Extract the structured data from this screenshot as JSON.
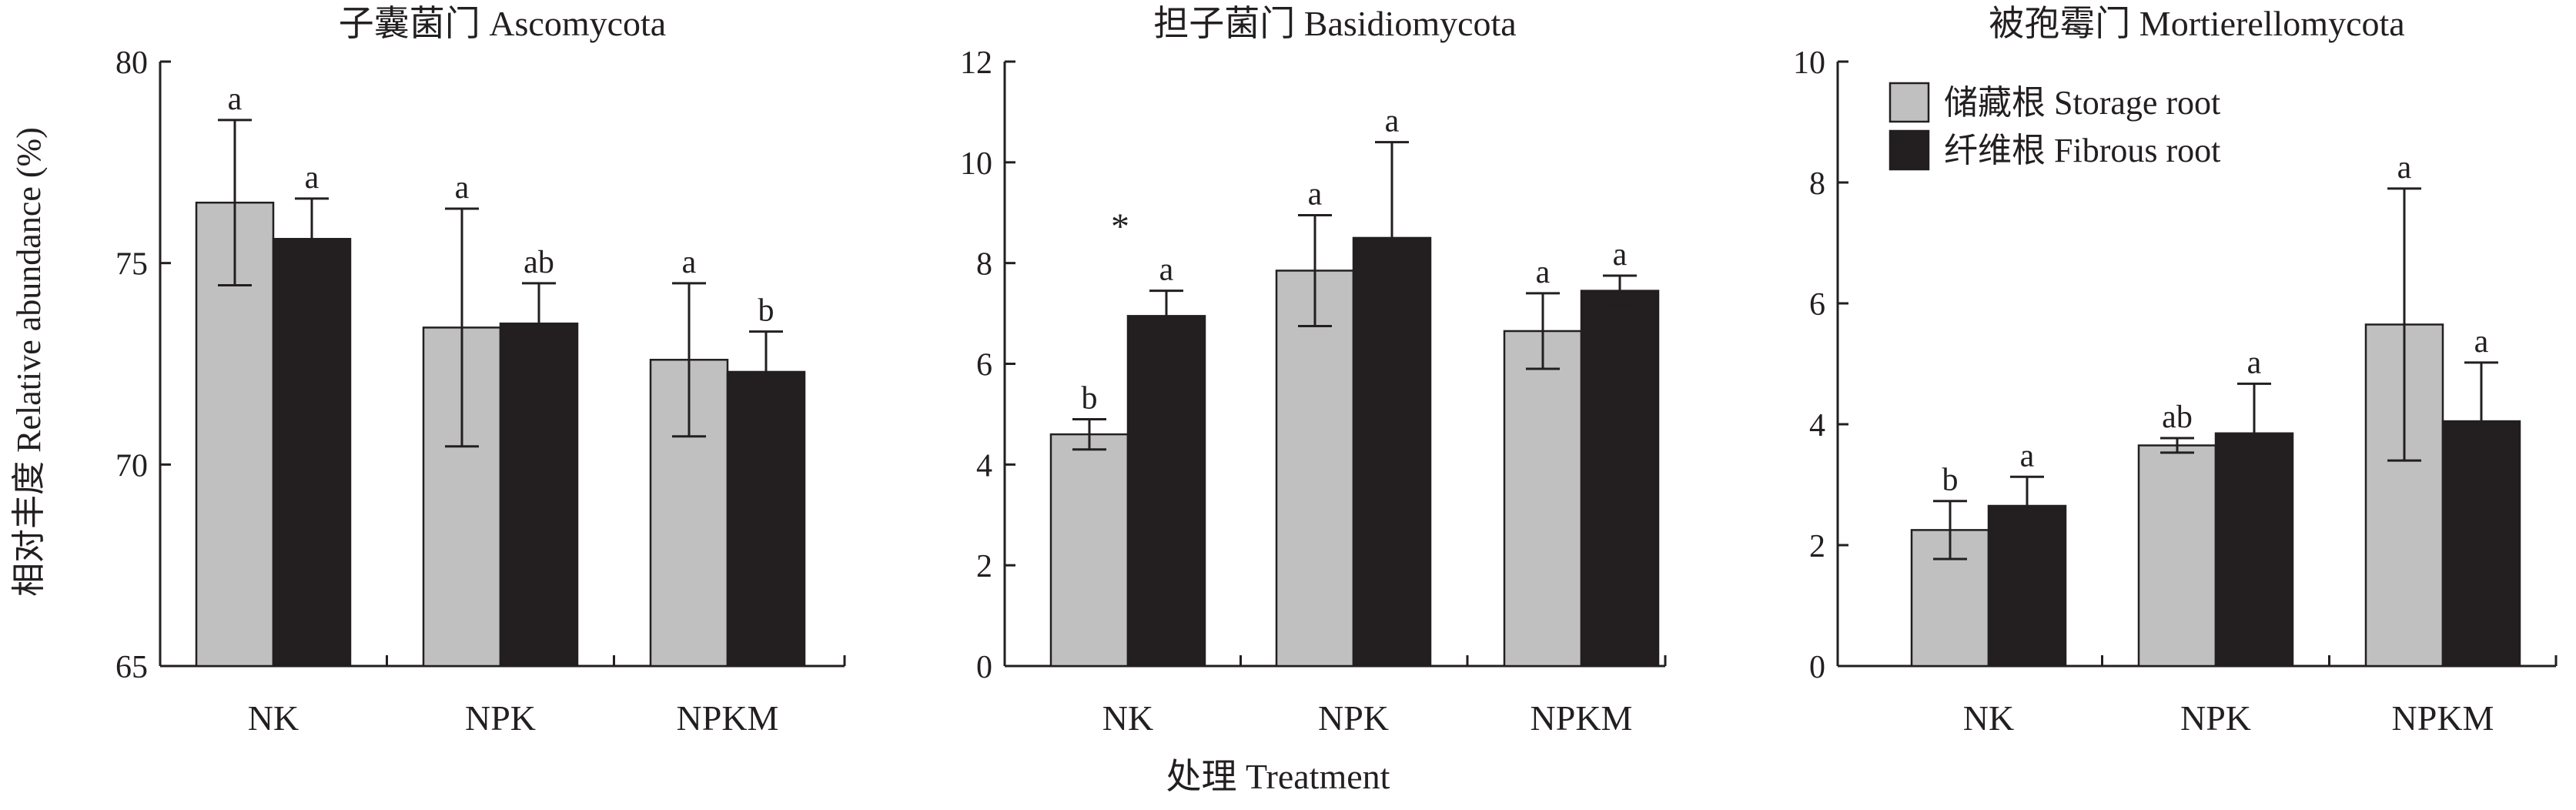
{
  "colors": {
    "storage_fill": "#c0c0c0",
    "fibrous_fill": "#231f20",
    "ink": "#231f20"
  },
  "figure": {
    "ylabel": "相对丰度 Relative abundance (%)",
    "xlabel": "处理 Treatment"
  },
  "chart_data": [
    {
      "type": "bar",
      "title": "子囊菌门 Ascomycota",
      "categories": [
        "NK",
        "NPK",
        "NPKM"
      ],
      "ylim": [
        65,
        80
      ],
      "yticks": [
        "65",
        "70",
        "75",
        "80"
      ],
      "legend": false,
      "series": [
        {
          "name": "储藏根 Storage root",
          "values": [
            76.5,
            73.4,
            72.6
          ],
          "errors": [
            2.05,
            2.95,
            1.9
          ],
          "labels": [
            "a",
            "a",
            "a"
          ]
        },
        {
          "name": "纤维根 Fibrous root",
          "values": [
            75.6,
            73.5,
            72.3
          ],
          "errors": [
            1.0,
            1.0,
            1.0
          ],
          "labels": [
            "a",
            "ab",
            "b"
          ]
        }
      ],
      "annotations": []
    },
    {
      "type": "bar",
      "title": "担子菌门 Basidiomycota",
      "categories": [
        "NK",
        "NPK",
        "NPKM"
      ],
      "ylim": [
        0,
        12
      ],
      "yticks": [
        "0",
        "2",
        "4",
        "6",
        "8",
        "10",
        "12"
      ],
      "legend": false,
      "series": [
        {
          "name": "储藏根 Storage root",
          "values": [
            4.6,
            7.85,
            6.65
          ],
          "errors": [
            0.3,
            1.1,
            0.75
          ],
          "labels": [
            "b",
            "a",
            "a"
          ]
        },
        {
          "name": "纤维根 Fibrous root",
          "values": [
            6.95,
            8.5,
            7.45
          ],
          "errors": [
            0.5,
            1.9,
            0.3
          ],
          "labels": [
            "a",
            "a",
            "a"
          ]
        }
      ],
      "annotations": [
        {
          "text": "*",
          "category": "NK"
        }
      ]
    },
    {
      "type": "bar",
      "title": "被孢霉门 Mortierellomycota",
      "categories": [
        "NK",
        "NPK",
        "NPKM"
      ],
      "ylim": [
        0,
        10
      ],
      "yticks": [
        "0",
        "2",
        "4",
        "6",
        "8",
        "10"
      ],
      "legend": true,
      "legend_position": "top-left",
      "series": [
        {
          "name": "储藏根 Storage root",
          "values": [
            2.25,
            3.65,
            5.65
          ],
          "errors": [
            0.48,
            0.12,
            2.25
          ],
          "labels": [
            "b",
            "ab",
            "a"
          ]
        },
        {
          "name": "纤维根 Fibrous root",
          "values": [
            2.65,
            3.85,
            4.05
          ],
          "errors": [
            0.48,
            0.82,
            0.97
          ],
          "labels": [
            "a",
            "a",
            "a"
          ]
        }
      ],
      "annotations": []
    }
  ]
}
